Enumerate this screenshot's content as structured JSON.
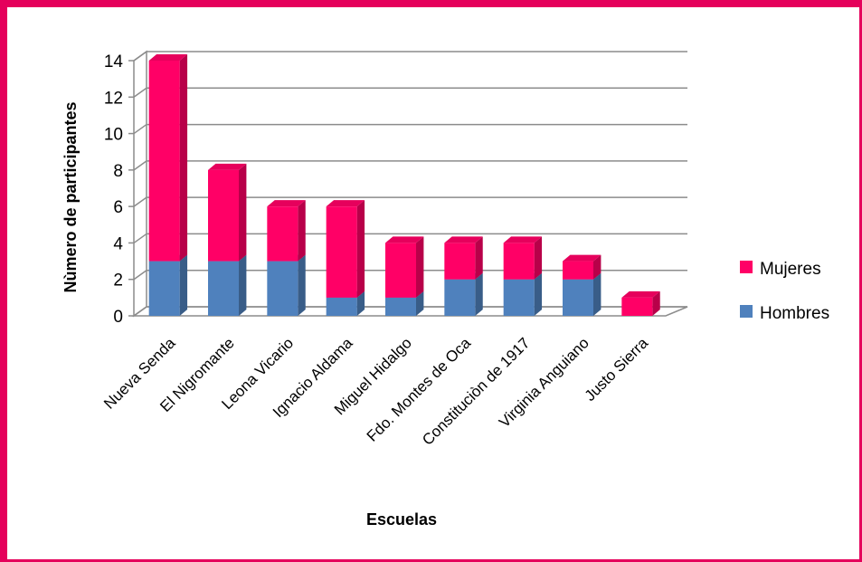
{
  "chart_data": {
    "type": "bar",
    "stacked": true,
    "three_d": true,
    "xlabel": "Escuelas",
    "ylabel": "Nùmero de participantes",
    "ylim": [
      0,
      14
    ],
    "yticks": [
      0,
      2,
      4,
      6,
      8,
      10,
      12,
      14
    ],
    "grid": true,
    "legend_position": "right",
    "categories": [
      "Nueva Senda",
      "El Nigromante",
      "Leona Vicario",
      "Ignacio Aldama",
      "Miguel Hidalgo",
      "Fdo. Montes de Oca",
      "Constituciòn de 1917",
      "Virginia Anguiano",
      "Justo Sierra"
    ],
    "series": [
      {
        "name": "Hombres",
        "values": [
          3,
          3,
          3,
          1,
          1,
          2,
          2,
          2,
          0
        ],
        "color": "#4f81bd"
      },
      {
        "name": "Mujeres",
        "values": [
          11,
          5,
          3,
          5,
          3,
          2,
          2,
          1,
          1
        ],
        "color": "#ff0066"
      }
    ]
  },
  "colors": {
    "frame_border": "#e5005b",
    "grid": "#8c8c8c",
    "background": "#ffffff"
  }
}
